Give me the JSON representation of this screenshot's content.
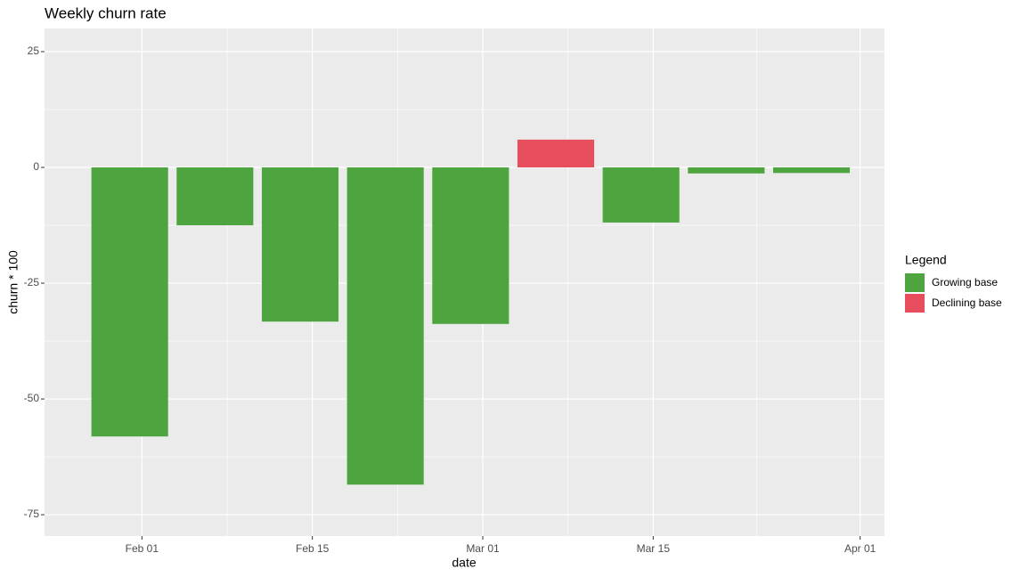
{
  "chart_data": {
    "type": "bar",
    "title": "Weekly churn rate",
    "x_label": "date",
    "y_label": "churn * 100",
    "x": [
      "Jan 31",
      "Feb 07",
      "Feb 14",
      "Feb 21",
      "Feb 28",
      "Mar 07",
      "Mar 14",
      "Mar 21",
      "Mar 28"
    ],
    "series": [
      {
        "name": "Growing base",
        "color": "#4ea53f",
        "values": [
          -58.1,
          -12.5,
          -33.3,
          -68.5,
          -33.8,
          null,
          -11.9,
          -1.3,
          -1.2
        ]
      },
      {
        "name": "Declining base",
        "color": "#e84d5e",
        "values": [
          null,
          null,
          null,
          null,
          null,
          6.0,
          null,
          null,
          null
        ]
      }
    ],
    "legend_title": "Legend",
    "legend_position": "right",
    "xlim": [
      "Jan 24",
      "Apr 03"
    ],
    "xticks": [
      "Feb 01",
      "Feb 15",
      "Mar 01",
      "Mar 15",
      "Apr 01"
    ],
    "ylim": [
      -79.6,
      30
    ],
    "yticks": [
      -75,
      -50,
      -25,
      0,
      25
    ],
    "grid": true
  }
}
